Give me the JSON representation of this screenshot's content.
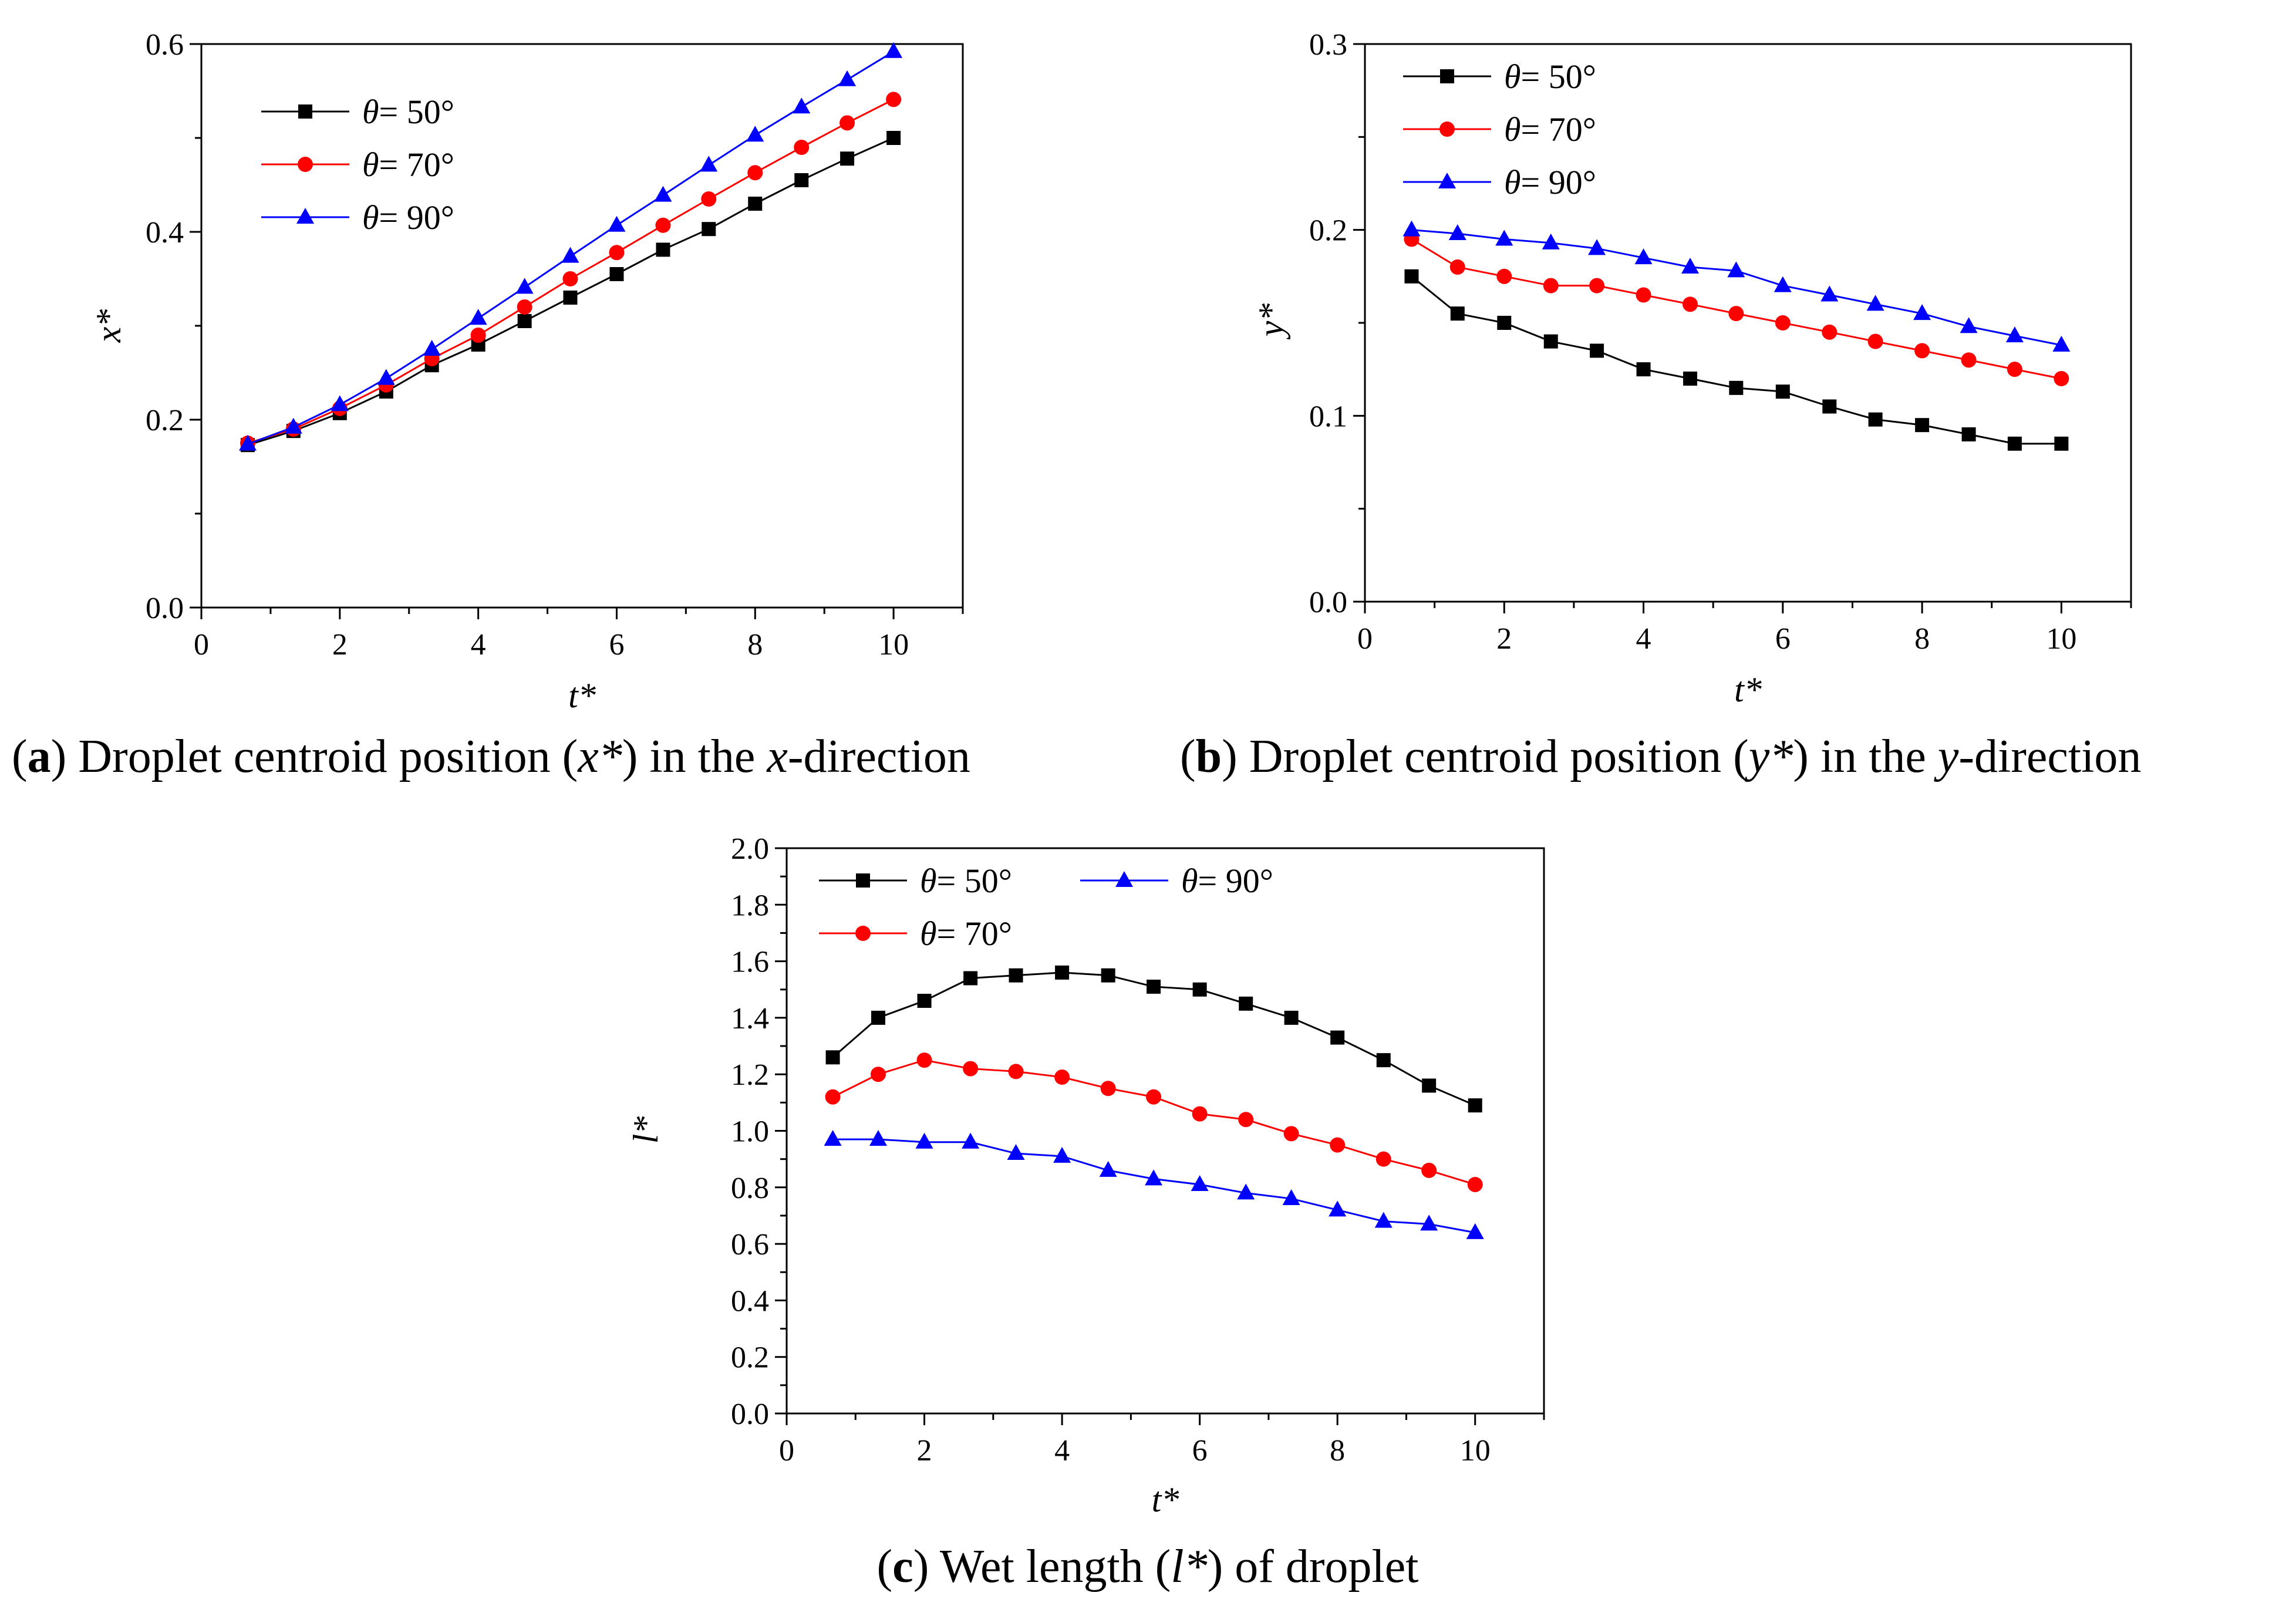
{
  "chart_data": [
    {
      "id": "a",
      "type": "line",
      "caption": {
        "letter": "a",
        "open": "(",
        "close": ")",
        "parts": [
          " Droplet centroid position (",
          "x*",
          ") in the ",
          "x",
          "-direction"
        ]
      },
      "xlabel": "t*",
      "ylabel": "x*",
      "xlim": [
        0,
        11
      ],
      "ylim": [
        0,
        0.6
      ],
      "xticks": [
        0,
        2,
        4,
        6,
        8,
        10
      ],
      "xtick_labels": [
        "0",
        "2",
        "4",
        "6",
        "8",
        "10"
      ],
      "yticks": [
        0,
        0.2,
        0.4,
        0.6
      ],
      "ytick_labels": [
        "0.0",
        "0.2",
        "0.4",
        "0.6"
      ],
      "legend_position": "top-left",
      "x": [
        0.67,
        1.33,
        2.0,
        2.67,
        3.33,
        4.0,
        4.67,
        5.33,
        6.0,
        6.67,
        7.33,
        8.0,
        8.67,
        9.33,
        10.0
      ],
      "series": [
        {
          "name": "θ = 50°",
          "theta": "θ",
          "label": "= 50°",
          "color": "#000000",
          "marker": "square",
          "values": [
            0.173,
            0.188,
            0.207,
            0.23,
            0.258,
            0.28,
            0.305,
            0.33,
            0.355,
            0.381,
            0.403,
            0.43,
            0.455,
            0.478,
            0.5
          ]
        },
        {
          "name": "θ = 70°",
          "theta": "θ",
          "label": "= 70°",
          "color": "#ff0000",
          "marker": "circle",
          "values": [
            0.175,
            0.19,
            0.212,
            0.237,
            0.265,
            0.29,
            0.32,
            0.35,
            0.378,
            0.407,
            0.435,
            0.463,
            0.49,
            0.516,
            0.541
          ]
        },
        {
          "name": "θ = 90°",
          "theta": "θ",
          "label": "= 90°",
          "color": "#0000ff",
          "marker": "triangle",
          "values": [
            0.174,
            0.192,
            0.216,
            0.244,
            0.275,
            0.308,
            0.341,
            0.374,
            0.407,
            0.439,
            0.471,
            0.503,
            0.533,
            0.562,
            0.592
          ]
        }
      ]
    },
    {
      "id": "b",
      "type": "line",
      "caption": {
        "letter": "b",
        "open": "(",
        "close": ")",
        "parts": [
          " Droplet centroid position (",
          "y*",
          ") in the ",
          "y",
          "-direction"
        ]
      },
      "xlabel": "t*",
      "ylabel": "y*",
      "xlim": [
        0,
        11
      ],
      "ylim": [
        0,
        0.3
      ],
      "xticks": [
        0,
        2,
        4,
        6,
        8,
        10
      ],
      "xtick_labels": [
        "0",
        "2",
        "4",
        "6",
        "8",
        "10"
      ],
      "yticks": [
        0,
        0.1,
        0.2,
        0.3
      ],
      "ytick_labels": [
        "0.0",
        "0.1",
        "0.2",
        "0.3"
      ],
      "legend_position": "top-left",
      "x": [
        0.67,
        1.33,
        2.0,
        2.67,
        3.33,
        4.0,
        4.67,
        5.33,
        6.0,
        6.67,
        7.33,
        8.0,
        8.67,
        9.33,
        10.0
      ],
      "series": [
        {
          "name": "θ = 50°",
          "theta": "θ",
          "label": "= 50°",
          "color": "#000000",
          "marker": "square",
          "values": [
            0.175,
            0.155,
            0.15,
            0.14,
            0.135,
            0.125,
            0.12,
            0.115,
            0.113,
            0.105,
            0.098,
            0.095,
            0.09,
            0.085,
            0.085
          ]
        },
        {
          "name": "θ = 70°",
          "theta": "θ",
          "label": "= 70°",
          "color": "#ff0000",
          "marker": "circle",
          "values": [
            0.195,
            0.18,
            0.175,
            0.17,
            0.17,
            0.165,
            0.16,
            0.155,
            0.15,
            0.145,
            0.14,
            0.135,
            0.13,
            0.125,
            0.12
          ]
        },
        {
          "name": "θ = 90°",
          "theta": "θ",
          "label": "= 90°",
          "color": "#0000ff",
          "marker": "triangle",
          "values": [
            0.2,
            0.198,
            0.195,
            0.193,
            0.19,
            0.185,
            0.18,
            0.178,
            0.17,
            0.165,
            0.16,
            0.155,
            0.148,
            0.143,
            0.138
          ]
        }
      ]
    },
    {
      "id": "c",
      "type": "line",
      "caption": {
        "letter": "c",
        "open": "(",
        "close": ")",
        "parts": [
          " Wet length (",
          "l*",
          ") of droplet"
        ]
      },
      "xlabel": "t*",
      "ylabel": "l*",
      "xlim": [
        0,
        11
      ],
      "ylim": [
        0,
        2.0
      ],
      "xticks": [
        0,
        2,
        4,
        6,
        8,
        10
      ],
      "xtick_labels": [
        "0",
        "2",
        "4",
        "6",
        "8",
        "10"
      ],
      "yticks": [
        0,
        0.2,
        0.4,
        0.6,
        0.8,
        1.0,
        1.2,
        1.4,
        1.6,
        1.8,
        2.0
      ],
      "ytick_labels": [
        "0.0",
        "0.2",
        "0.4",
        "0.6",
        "0.8",
        "1.0",
        "1.2",
        "1.4",
        "1.6",
        "1.8",
        "2.0"
      ],
      "legend_position": "top-left",
      "x": [
        0.67,
        1.33,
        2.0,
        2.67,
        3.33,
        4.0,
        4.67,
        5.33,
        6.0,
        6.67,
        7.33,
        8.0,
        8.67,
        9.33,
        10.0
      ],
      "series": [
        {
          "name": "θ = 50°",
          "theta": "θ",
          "label": "= 50°",
          "color": "#000000",
          "marker": "square",
          "values": [
            1.26,
            1.4,
            1.46,
            1.54,
            1.55,
            1.56,
            1.55,
            1.51,
            1.5,
            1.45,
            1.4,
            1.33,
            1.25,
            1.16,
            1.09
          ]
        },
        {
          "name": "θ = 70°",
          "theta": "θ",
          "label": "= 70°",
          "color": "#ff0000",
          "marker": "circle",
          "values": [
            1.12,
            1.2,
            1.25,
            1.22,
            1.21,
            1.19,
            1.15,
            1.12,
            1.06,
            1.04,
            0.99,
            0.95,
            0.9,
            0.86,
            0.81
          ]
        },
        {
          "name": "θ = 90°",
          "theta": "θ",
          "label": "= 90°",
          "color": "#0000ff",
          "marker": "triangle",
          "values": [
            0.97,
            0.97,
            0.96,
            0.96,
            0.92,
            0.91,
            0.86,
            0.83,
            0.81,
            0.78,
            0.76,
            0.72,
            0.68,
            0.67,
            0.64
          ]
        }
      ]
    }
  ]
}
